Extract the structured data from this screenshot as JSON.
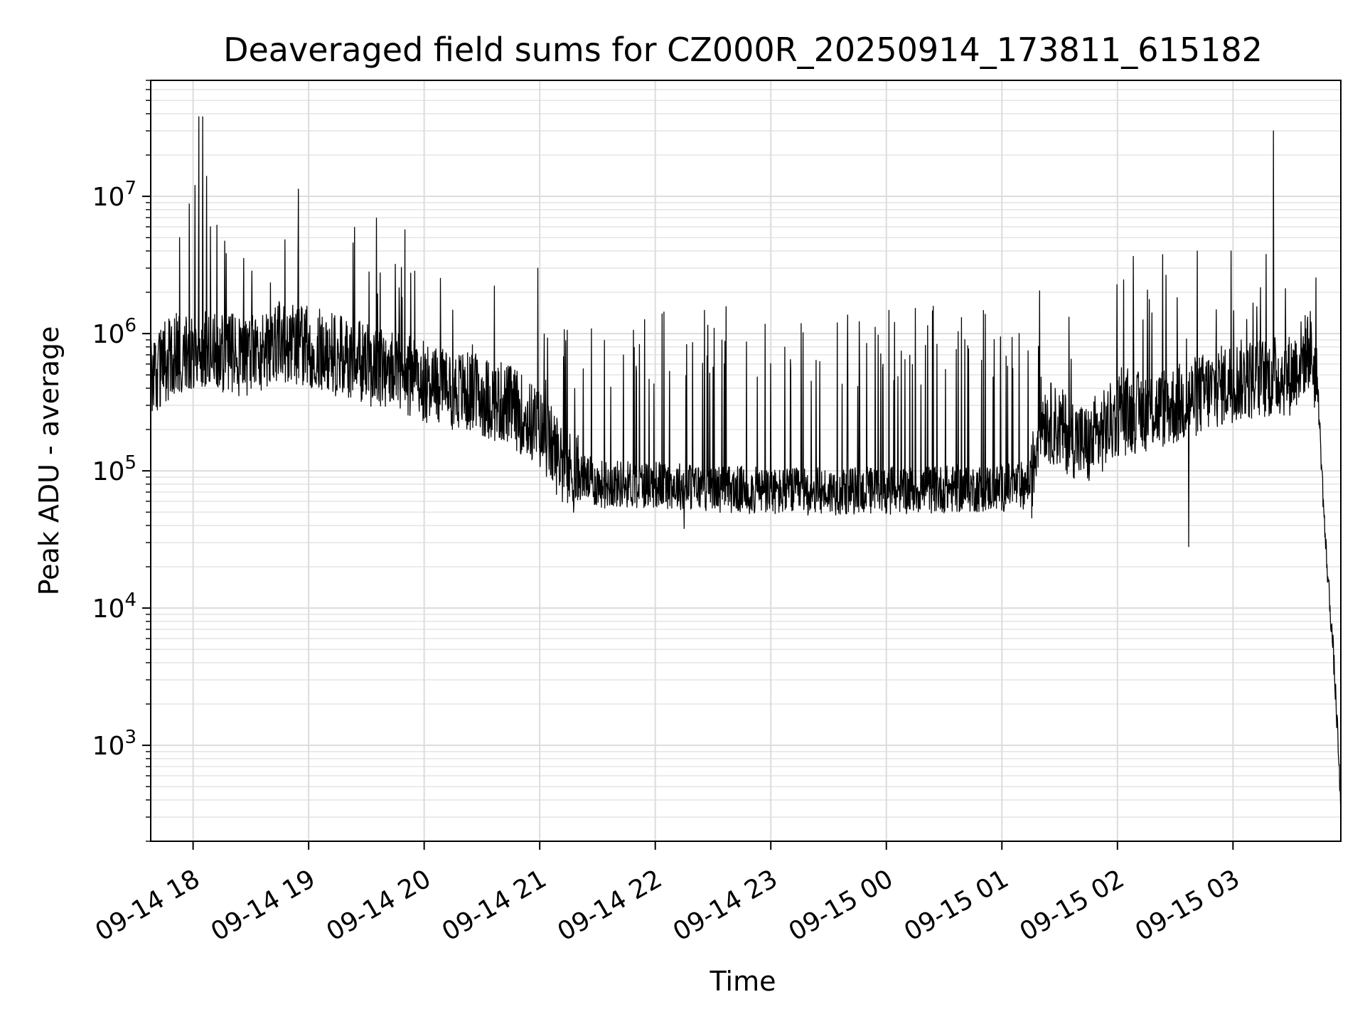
{
  "chart_data": {
    "type": "line",
    "title": "Deaveraged field sums for CZ000R_20250914_173811_615182",
    "xlabel": "Time",
    "ylabel": "Peak ADU - average",
    "yscale": "log",
    "xlim": [
      "2025-09-14 17:38",
      "2025-09-15 03:56"
    ],
    "ylim": [
      200,
      70000000
    ],
    "grid": "on (major and minor)",
    "x_ticks": [
      {
        "t": "2025-09-14 18:00",
        "label": "09-14 18"
      },
      {
        "t": "2025-09-14 19:00",
        "label": "09-14 19"
      },
      {
        "t": "2025-09-14 20:00",
        "label": "09-14 20"
      },
      {
        "t": "2025-09-14 21:00",
        "label": "09-14 21"
      },
      {
        "t": "2025-09-14 22:00",
        "label": "09-14 22"
      },
      {
        "t": "2025-09-14 23:00",
        "label": "09-14 23"
      },
      {
        "t": "2025-09-15 00:00",
        "label": "09-15 00"
      },
      {
        "t": "2025-09-15 01:00",
        "label": "09-15 01"
      },
      {
        "t": "2025-09-15 02:00",
        "label": "09-15 02"
      },
      {
        "t": "2025-09-15 03:00",
        "label": "09-15 03"
      }
    ],
    "y_ticks": [
      {
        "value": 1000,
        "base": "10",
        "exp": "3"
      },
      {
        "value": 10000,
        "base": "10",
        "exp": "4"
      },
      {
        "value": 100000,
        "base": "10",
        "exp": "5"
      },
      {
        "value": 1000000,
        "base": "10",
        "exp": "6"
      },
      {
        "value": 10000000,
        "base": "10",
        "exp": "7"
      }
    ],
    "series": [
      {
        "color": "#000000",
        "baseline": [
          [
            "2025-09-14 17:38",
            500000
          ],
          [
            "2025-09-14 17:50",
            700000
          ],
          [
            "2025-09-14 18:00",
            800000
          ],
          [
            "2025-09-14 18:15",
            700000
          ],
          [
            "2025-09-14 18:30",
            700000
          ],
          [
            "2025-09-14 18:45",
            900000
          ],
          [
            "2025-09-14 19:00",
            800000
          ],
          [
            "2025-09-14 19:30",
            600000
          ],
          [
            "2025-09-14 20:00",
            450000
          ],
          [
            "2025-09-14 20:30",
            350000
          ],
          [
            "2025-09-14 20:45",
            300000
          ],
          [
            "2025-09-14 21:00",
            200000
          ],
          [
            "2025-09-14 21:15",
            100000
          ],
          [
            "2025-09-14 21:30",
            80000
          ],
          [
            "2025-09-14 22:00",
            80000
          ],
          [
            "2025-09-14 22:30",
            75000
          ],
          [
            "2025-09-14 23:00",
            70000
          ],
          [
            "2025-09-15 00:00",
            72000
          ],
          [
            "2025-09-15 01:00",
            75000
          ],
          [
            "2025-09-15 01:15",
            80000
          ],
          [
            "2025-09-15 01:20",
            250000
          ],
          [
            "2025-09-15 01:45",
            150000
          ],
          [
            "2025-09-15 02:00",
            250000
          ],
          [
            "2025-09-15 02:30",
            300000
          ],
          [
            "2025-09-15 03:00",
            450000
          ],
          [
            "2025-09-15 03:30",
            500000
          ],
          [
            "2025-09-15 03:40",
            800000
          ],
          [
            "2025-09-15 03:44",
            400000
          ],
          [
            "2025-09-15 03:48",
            30000
          ],
          [
            "2025-09-15 03:52",
            5000
          ],
          [
            "2025-09-15 03:54",
            1500
          ],
          [
            "2025-09-15 03:56",
            350
          ]
        ],
        "spikes": [
          [
            "2025-09-14 17:58",
            8800000
          ],
          [
            "2025-09-14 18:03",
            38000000
          ],
          [
            "2025-09-14 18:05",
            38000000
          ],
          [
            "2025-09-14 18:07",
            14000000
          ],
          [
            "2025-09-14 18:01",
            12000000
          ],
          [
            "2025-09-14 18:09",
            6000000
          ],
          [
            "2025-09-14 17:53",
            5000000
          ],
          [
            "2025-09-14 19:50",
            5700000
          ],
          [
            "2025-09-14 19:45",
            3200000
          ],
          [
            "2025-09-14 20:59",
            3000000
          ],
          [
            "2025-09-15 02:59",
            4000000
          ],
          [
            "2025-09-15 03:21",
            30000000
          ],
          [
            "2025-09-15 02:37",
            28000
          ],
          [
            "2025-09-14 22:15",
            38000
          ]
        ]
      }
    ]
  }
}
